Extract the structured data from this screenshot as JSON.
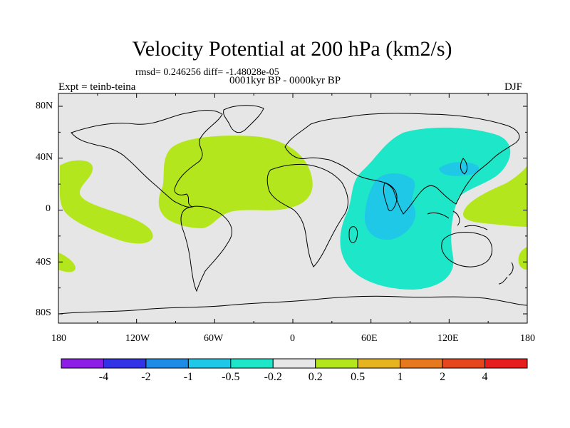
{
  "title": "Velocity Potential at 200 hPa (km2/s)",
  "stats": "rmsd= 0.246256 diff= -1.48028e-05",
  "period": "0001kyr BP - 0000kyr BP",
  "expt": "Expt = teinb-teina",
  "season": "DJF",
  "y_ticks": [
    "80N",
    "40N",
    "0",
    "40S",
    "80S"
  ],
  "x_ticks": [
    "180",
    "120W",
    "60W",
    "0",
    "60E",
    "120E",
    "180"
  ],
  "colorbar": {
    "colors": [
      "#8c1ee6",
      "#3232e6",
      "#1e8ce6",
      "#1ec8e6",
      "#1ee6c8",
      "#e6e6e6",
      "#b4e61e",
      "#e6b41e",
      "#e6781e",
      "#e6461e",
      "#e61e1e"
    ],
    "labels": [
      "-4",
      "-2",
      "-1",
      "-0.5",
      "-0.2",
      "0.2",
      "0.5",
      "1",
      "2",
      "4"
    ]
  },
  "colors": {
    "ocean_land_bg": "#e6e6e6",
    "positive_fill": "#b4e61e",
    "negative_fill": "#1ee6c8",
    "negative_core": "#1ec8e6"
  }
}
